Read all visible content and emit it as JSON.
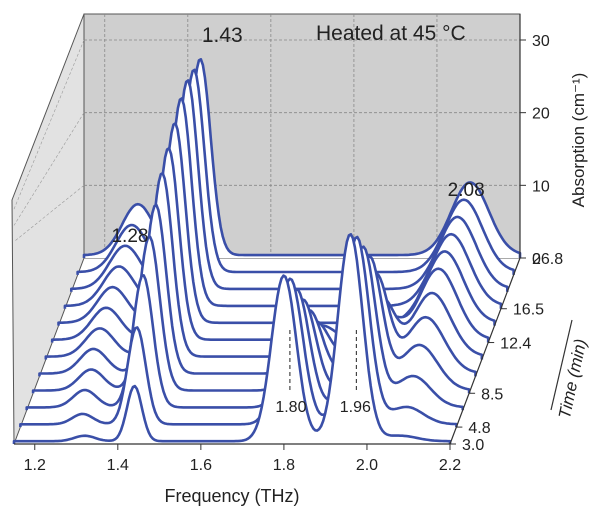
{
  "chart_data": {
    "type": "line",
    "title": "Heated at 45 °C",
    "xlabel": "Frequency (THz)",
    "ylabel": "Absorption (cm⁻¹)",
    "zlabel": "Time (min)",
    "x_ticks": [
      "1.2",
      "1.4",
      "1.6",
      "1.8",
      "2.0",
      "2.2"
    ],
    "y_ticks": [
      "0",
      "10",
      "20",
      "30"
    ],
    "time_ticks": [
      "3.0",
      "4.8",
      "8.5",
      "12.4",
      "16.5",
      "26.8"
    ],
    "xlim": [
      1.15,
      2.2
    ],
    "ylim": [
      0,
      33
    ],
    "grid": true,
    "peak_labels": [
      {
        "text": "1.28",
        "x": 1.28
      },
      {
        "text": "1.43",
        "x": 1.43
      },
      {
        "text": "2.08",
        "x": 2.08
      },
      {
        "text": "1.80",
        "x": 1.8
      },
      {
        "text": "1.96",
        "x": 1.96
      }
    ],
    "series": [
      {
        "time": 3.0,
        "peaks": [
          {
            "x": 1.8,
            "y": 24,
            "w": 0.03
          },
          {
            "x": 1.96,
            "y": 30,
            "w": 0.03
          },
          {
            "x": 1.44,
            "y": 8,
            "w": 0.018
          },
          {
            "x": 1.32,
            "y": 0.8,
            "w": 0.025
          },
          {
            "x": 2.08,
            "y": 0.8,
            "w": 0.04
          }
        ]
      },
      {
        "time": 4.8,
        "peaks": [
          {
            "x": 1.8,
            "y": 21,
            "w": 0.03
          },
          {
            "x": 1.96,
            "y": 27,
            "w": 0.03
          },
          {
            "x": 1.43,
            "y": 14,
            "w": 0.022
          },
          {
            "x": 1.3,
            "y": 1.5,
            "w": 0.025
          },
          {
            "x": 2.08,
            "y": 2.5,
            "w": 0.04
          }
        ]
      },
      {
        "time": 6.0,
        "peaks": [
          {
            "x": 1.8,
            "y": 17,
            "w": 0.03
          },
          {
            "x": 1.96,
            "y": 23,
            "w": 0.03
          },
          {
            "x": 1.43,
            "y": 19,
            "w": 0.024
          },
          {
            "x": 1.29,
            "y": 2.5,
            "w": 0.028
          },
          {
            "x": 2.08,
            "y": 4.5,
            "w": 0.042
          }
        ]
      },
      {
        "time": 7.2,
        "peaks": [
          {
            "x": 1.8,
            "y": 13,
            "w": 0.03
          },
          {
            "x": 1.96,
            "y": 19,
            "w": 0.03
          },
          {
            "x": 1.43,
            "y": 22,
            "w": 0.025
          },
          {
            "x": 1.29,
            "y": 3.0,
            "w": 0.03
          },
          {
            "x": 2.08,
            "y": 6.5,
            "w": 0.044
          }
        ]
      },
      {
        "time": 8.5,
        "peaks": [
          {
            "x": 1.8,
            "y": 9,
            "w": 0.03
          },
          {
            "x": 1.96,
            "y": 14,
            "w": 0.03
          },
          {
            "x": 1.43,
            "y": 24,
            "w": 0.025
          },
          {
            "x": 1.28,
            "y": 3.5,
            "w": 0.032
          },
          {
            "x": 2.08,
            "y": 8,
            "w": 0.045
          }
        ]
      },
      {
        "time": 10.5,
        "peaks": [
          {
            "x": 1.8,
            "y": 5,
            "w": 0.03
          },
          {
            "x": 1.96,
            "y": 8,
            "w": 0.03
          },
          {
            "x": 1.43,
            "y": 26,
            "w": 0.025
          },
          {
            "x": 1.28,
            "y": 4.0,
            "w": 0.034
          },
          {
            "x": 2.08,
            "y": 9,
            "w": 0.045
          }
        ]
      },
      {
        "time": 12.4,
        "peaks": [
          {
            "x": 1.8,
            "y": 2,
            "w": 0.03
          },
          {
            "x": 1.96,
            "y": 3,
            "w": 0.03
          },
          {
            "x": 1.43,
            "y": 27,
            "w": 0.025
          },
          {
            "x": 1.28,
            "y": 4.5,
            "w": 0.035
          },
          {
            "x": 2.08,
            "y": 10,
            "w": 0.045
          }
        ]
      },
      {
        "time": 14.5,
        "peaks": [
          {
            "x": 1.43,
            "y": 28,
            "w": 0.025
          },
          {
            "x": 1.28,
            "y": 5.0,
            "w": 0.036
          },
          {
            "x": 2.08,
            "y": 10,
            "w": 0.045
          }
        ]
      },
      {
        "time": 16.5,
        "peaks": [
          {
            "x": 1.43,
            "y": 29,
            "w": 0.025
          },
          {
            "x": 1.28,
            "y": 5.5,
            "w": 0.037
          },
          {
            "x": 2.08,
            "y": 10,
            "w": 0.045
          }
        ]
      },
      {
        "time": 19.0,
        "peaks": [
          {
            "x": 1.43,
            "y": 29,
            "w": 0.025
          },
          {
            "x": 1.28,
            "y": 6.0,
            "w": 0.038
          },
          {
            "x": 2.08,
            "y": 10,
            "w": 0.045
          }
        ]
      },
      {
        "time": 22.5,
        "peaks": [
          {
            "x": 1.43,
            "y": 28,
            "w": 0.025
          },
          {
            "x": 1.28,
            "y": 6.5,
            "w": 0.038
          },
          {
            "x": 2.08,
            "y": 10,
            "w": 0.045
          }
        ]
      },
      {
        "time": 26.8,
        "peaks": [
          {
            "x": 1.43,
            "y": 27,
            "w": 0.025
          },
          {
            "x": 1.28,
            "y": 7.0,
            "w": 0.038
          },
          {
            "x": 2.08,
            "y": 10,
            "w": 0.045
          }
        ]
      }
    ]
  }
}
